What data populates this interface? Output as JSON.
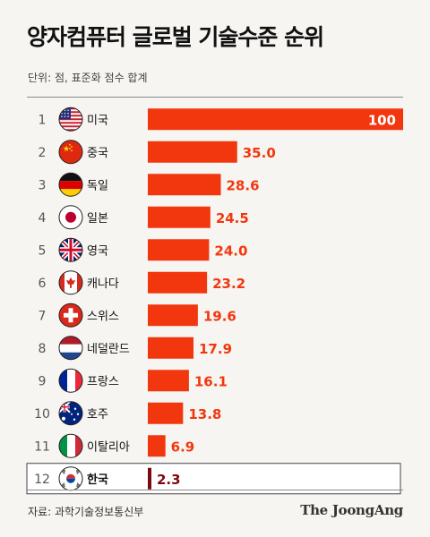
{
  "header": {
    "title": "양자컴퓨터 글로벌 기술수준 순위",
    "subtitle": "단위: 점, 표준화 점수 합계"
  },
  "footer": {
    "source": "자료: 과학기술정보통신부",
    "brand": "The JoongAng"
  },
  "colors": {
    "bar": "#f2370f",
    "highlight_bar": "#7a0a12",
    "background": "#f6f5f1",
    "text": "#111111"
  },
  "chart_data": {
    "type": "bar",
    "orientation": "horizontal",
    "title": "양자컴퓨터 글로벌 기술수준 순위",
    "unit": "단위: 점, 표준화 점수 합계",
    "xlim": [
      0,
      100
    ],
    "highlight": "한국",
    "ranks": [
      "1",
      "2",
      "3",
      "4",
      "5",
      "6",
      "7",
      "8",
      "9",
      "10",
      "11",
      "12"
    ],
    "categories": [
      "미국",
      "중국",
      "독일",
      "일본",
      "영국",
      "캐나다",
      "스위스",
      "네덜란드",
      "프랑스",
      "호주",
      "이탈리아",
      "한국"
    ],
    "flags": [
      "us-flag-icon",
      "china-flag-icon",
      "germany-flag-icon",
      "japan-flag-icon",
      "uk-flag-icon",
      "canada-flag-icon",
      "switzerland-flag-icon",
      "netherlands-flag-icon",
      "france-flag-icon",
      "australia-flag-icon",
      "italy-flag-icon",
      "korea-flag-icon"
    ],
    "values": [
      100,
      35.0,
      28.6,
      24.5,
      24.0,
      23.2,
      19.6,
      17.9,
      16.1,
      13.8,
      6.9,
      2.3
    ],
    "value_labels": [
      "100",
      "35.0",
      "28.6",
      "24.5",
      "24.0",
      "23.2",
      "19.6",
      "17.9",
      "16.1",
      "13.8",
      "6.9",
      "2.3"
    ]
  }
}
